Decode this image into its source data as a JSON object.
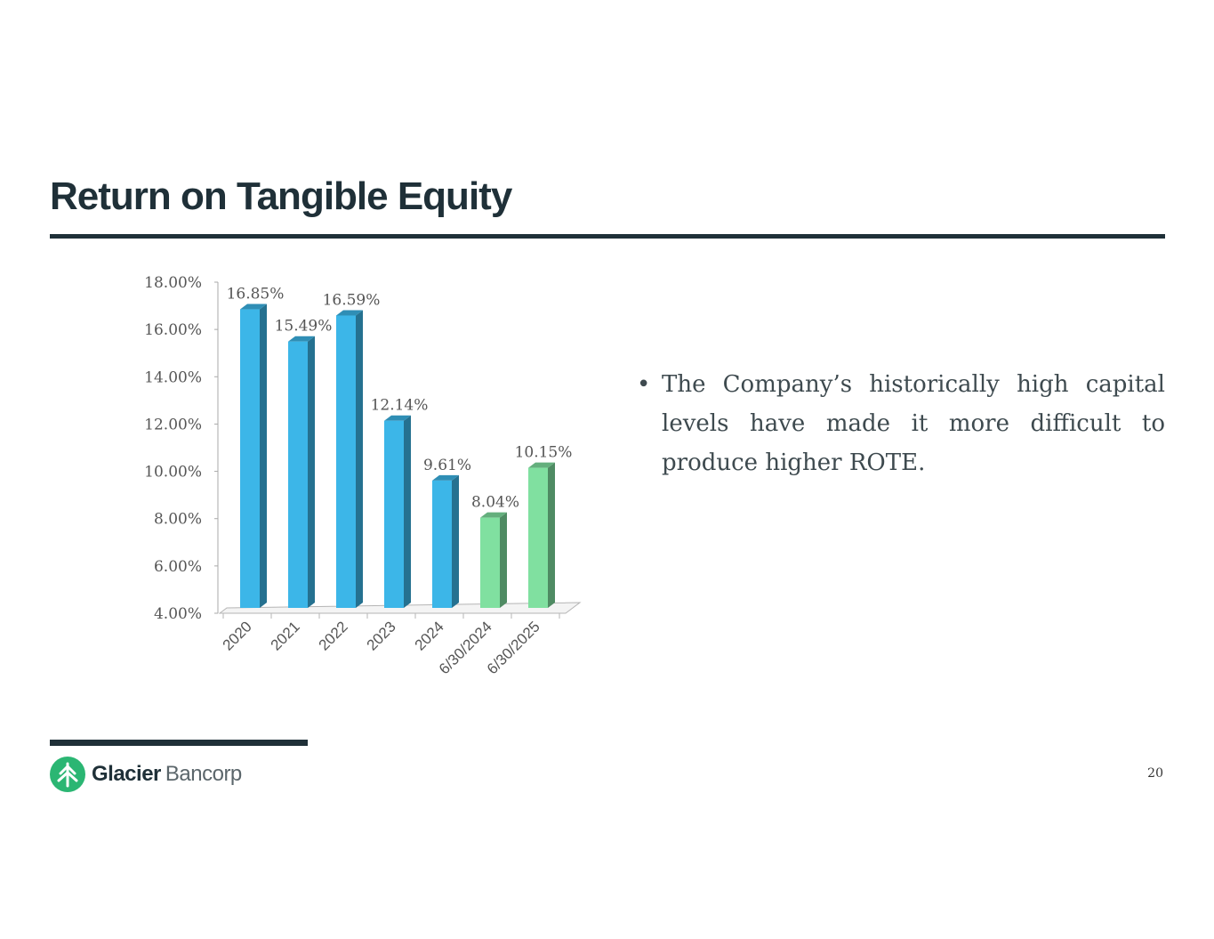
{
  "slide": {
    "title": "Return on Tangible Equity",
    "bullet": "The Company’s historically high capital levels have made it more difficult to produce higher ROTE.",
    "page_number": "20",
    "logo": {
      "name_bold": "Glacier",
      "name_light": "Bancorp"
    }
  },
  "colors": {
    "title": "#1f3038",
    "bar_historic": "#3cb6e8",
    "bar_midyear": "#80e0a0",
    "axis_text": "#555555",
    "logo_green": "#2bb673"
  },
  "chart_data": {
    "type": "bar",
    "title": "",
    "xlabel": "",
    "ylabel": "",
    "categories": [
      "2020",
      "2021",
      "2022",
      "2023",
      "2024",
      "6/30/2024",
      "6/30/2025"
    ],
    "values": [
      16.85,
      15.49,
      16.59,
      12.14,
      9.61,
      8.04,
      10.15
    ],
    "data_labels": [
      "16.85%",
      "15.49%",
      "16.59%",
      "12.14%",
      "9.61%",
      "8.04%",
      "10.15%"
    ],
    "bar_groups": [
      "historic",
      "historic",
      "historic",
      "historic",
      "historic",
      "midyear",
      "midyear"
    ],
    "ylim": [
      4,
      18
    ],
    "yticks": [
      4,
      6,
      8,
      10,
      12,
      14,
      16,
      18
    ],
    "ytick_labels": [
      "4.00%",
      "6.00%",
      "8.00%",
      "10.00%",
      "12.00%",
      "14.00%",
      "16.00%",
      "18.00%"
    ],
    "grid": false,
    "legend": "none"
  }
}
